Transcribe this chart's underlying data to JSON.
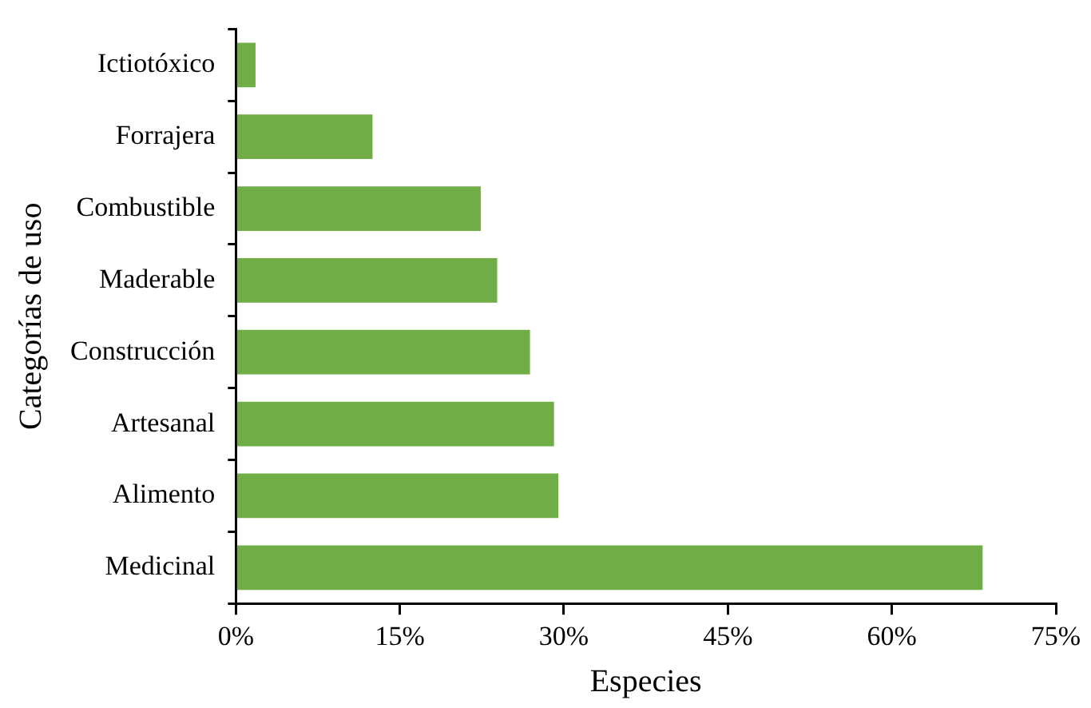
{
  "chart_data": {
    "type": "bar",
    "orientation": "horizontal",
    "xlabel": "Especies",
    "ylabel": "Categorías de uso",
    "categories": [
      "Ictiotóxico",
      "Forrajera",
      "Combustible",
      "Maderable",
      "Construcción",
      "Artesanal",
      "Alimento",
      "Medicinal"
    ],
    "values": [
      1.8,
      12.5,
      22.4,
      23.9,
      26.9,
      29.1,
      29.5,
      68.3
    ],
    "color": "#70ad47",
    "xlim": [
      0,
      75
    ],
    "xticks": [
      {
        "value": 0,
        "label": "0%"
      },
      {
        "value": 15,
        "label": "15%"
      },
      {
        "value": 30,
        "label": "30%"
      },
      {
        "value": 45,
        "label": "45%"
      },
      {
        "value": 60,
        "label": "60%"
      },
      {
        "value": 75,
        "label": "75%"
      }
    ],
    "grid": false,
    "legend": false
  }
}
